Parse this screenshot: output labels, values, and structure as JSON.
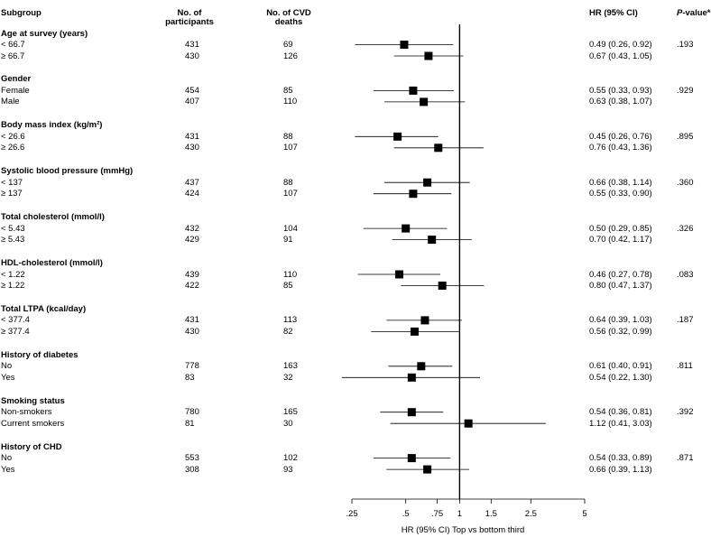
{
  "chart_data": {
    "type": "forest",
    "columns": {
      "subgroup": "Subgroup",
      "participants": "No. of participants",
      "participants_l1": "No. of",
      "participants_l2": "participants",
      "deaths_l1": "No. of CVD",
      "deaths_l2": "deaths",
      "hr": "HR (95% CI)",
      "p_italic": "P",
      "p_rest": "-value*"
    },
    "xlabel": "HR (95% CI) Top vs bottom third",
    "xscale": "log",
    "xlim": [
      0.25,
      5
    ],
    "reference_line": 1,
    "ticks": [
      {
        "value": 0.25,
        "label": ".25"
      },
      {
        "value": 0.5,
        "label": ".5"
      },
      {
        "value": 0.75,
        "label": ".75"
      },
      {
        "value": 1,
        "label": "1"
      },
      {
        "value": 1.5,
        "label": "1.5"
      },
      {
        "value": 2.5,
        "label": "2.5"
      },
      {
        "value": 5,
        "label": "5"
      }
    ],
    "groups": [
      {
        "title": "Age at survey (years)",
        "p": ".193",
        "rows": [
          {
            "label": "< 66.7",
            "n": "431",
            "deaths": "69",
            "hr": 0.49,
            "lo": 0.26,
            "hi": 0.92,
            "hr_text": "0.49 (0.26, 0.92)"
          },
          {
            "label": "≥ 66.7",
            "n": "430",
            "deaths": "126",
            "hr": 0.67,
            "lo": 0.43,
            "hi": 1.05,
            "hr_text": "0.67 (0.43, 1.05)"
          }
        ]
      },
      {
        "title": "Gender",
        "p": ".929",
        "rows": [
          {
            "label": "Female",
            "n": "454",
            "deaths": "85",
            "hr": 0.55,
            "lo": 0.33,
            "hi": 0.93,
            "hr_text": "0.55 (0.33, 0.93)"
          },
          {
            "label": "Male",
            "n": "407",
            "deaths": "110",
            "hr": 0.63,
            "lo": 0.38,
            "hi": 1.07,
            "hr_text": "0.63 (0.38, 1.07)"
          }
        ]
      },
      {
        "title": "Body mass index (kg/m²)",
        "p": ".895",
        "rows": [
          {
            "label": "< 26.6",
            "n": "431",
            "deaths": "88",
            "hr": 0.45,
            "lo": 0.26,
            "hi": 0.76,
            "hr_text": "0.45 (0.26, 0.76)"
          },
          {
            "label": "≥ 26.6",
            "n": "430",
            "deaths": "107",
            "hr": 0.76,
            "lo": 0.43,
            "hi": 1.36,
            "hr_text": "0.76 (0.43, 1.36)"
          }
        ]
      },
      {
        "title": "Systolic blood pressure (mmHg)",
        "p": ".360",
        "rows": [
          {
            "label": "< 137",
            "n": "437",
            "deaths": "88",
            "hr": 0.66,
            "lo": 0.38,
            "hi": 1.14,
            "hr_text": "0.66 (0.38, 1.14)"
          },
          {
            "label": "≥ 137",
            "n": "424",
            "deaths": "107",
            "hr": 0.55,
            "lo": 0.33,
            "hi": 0.9,
            "hr_text": "0.55 (0.33, 0.90)"
          }
        ]
      },
      {
        "title": "Total cholesterol (mmol/l)",
        "p": ".326",
        "rows": [
          {
            "label": "< 5.43",
            "n": "432",
            "deaths": "104",
            "hr": 0.5,
            "lo": 0.29,
            "hi": 0.85,
            "hr_text": "0.50 (0.29, 0.85)"
          },
          {
            "label": "≥ 5.43",
            "n": "429",
            "deaths": "91",
            "hr": 0.7,
            "lo": 0.42,
            "hi": 1.17,
            "hr_text": "0.70 (0.42, 1.17)"
          }
        ]
      },
      {
        "title": "HDL-cholesterol (mmol/l)",
        "p": ".083",
        "rows": [
          {
            "label": "< 1.22",
            "n": "439",
            "deaths": "110",
            "hr": 0.46,
            "lo": 0.27,
            "hi": 0.78,
            "hr_text": "0.46 (0.27, 0.78)"
          },
          {
            "label": "≥ 1.22",
            "n": "422",
            "deaths": "85",
            "hr": 0.8,
            "lo": 0.47,
            "hi": 1.37,
            "hr_text": "0.80 (0.47, 1.37)"
          }
        ]
      },
      {
        "title": "Total LTPA (kcal/day)",
        "p": ".187",
        "rows": [
          {
            "label": "< 377.4",
            "n": "431",
            "deaths": "113",
            "hr": 0.64,
            "lo": 0.39,
            "hi": 1.03,
            "hr_text": "0.64 (0.39, 1.03)"
          },
          {
            "label": "≥ 377.4",
            "n": "430",
            "deaths": "82",
            "hr": 0.56,
            "lo": 0.32,
            "hi": 0.99,
            "hr_text": "0.56 (0.32, 0.99)"
          }
        ]
      },
      {
        "title": "History of diabetes",
        "p": ".811",
        "rows": [
          {
            "label": "No",
            "n": "778",
            "deaths": "163",
            "hr": 0.61,
            "lo": 0.4,
            "hi": 0.91,
            "hr_text": "0.61 (0.40, 0.91)"
          },
          {
            "label": "Yes",
            "n": "83",
            "deaths": "32",
            "hr": 0.54,
            "lo": 0.22,
            "hi": 1.3,
            "hr_text": "0.54 (0.22, 1.30)"
          }
        ]
      },
      {
        "title": "Smoking status",
        "p": ".392",
        "rows": [
          {
            "label": "Non-smokers",
            "n": "780",
            "deaths": "165",
            "hr": 0.54,
            "lo": 0.36,
            "hi": 0.81,
            "hr_text": "0.54 (0.36, 0.81)"
          },
          {
            "label": "Current smokers",
            "n": "81",
            "deaths": "30",
            "hr": 1.12,
            "lo": 0.41,
            "hi": 3.03,
            "hr_text": "1.12 (0.41, 3.03)"
          }
        ]
      },
      {
        "title": "History of CHD",
        "p": ".871",
        "rows": [
          {
            "label": "No",
            "n": "553",
            "deaths": "102",
            "hr": 0.54,
            "lo": 0.33,
            "hi": 0.89,
            "hr_text": "0.54 (0.33, 0.89)"
          },
          {
            "label": "Yes",
            "n": "308",
            "deaths": "93",
            "hr": 0.66,
            "lo": 0.39,
            "hi": 1.13,
            "hr_text": "0.66 (0.39, 1.13)"
          }
        ]
      }
    ]
  }
}
